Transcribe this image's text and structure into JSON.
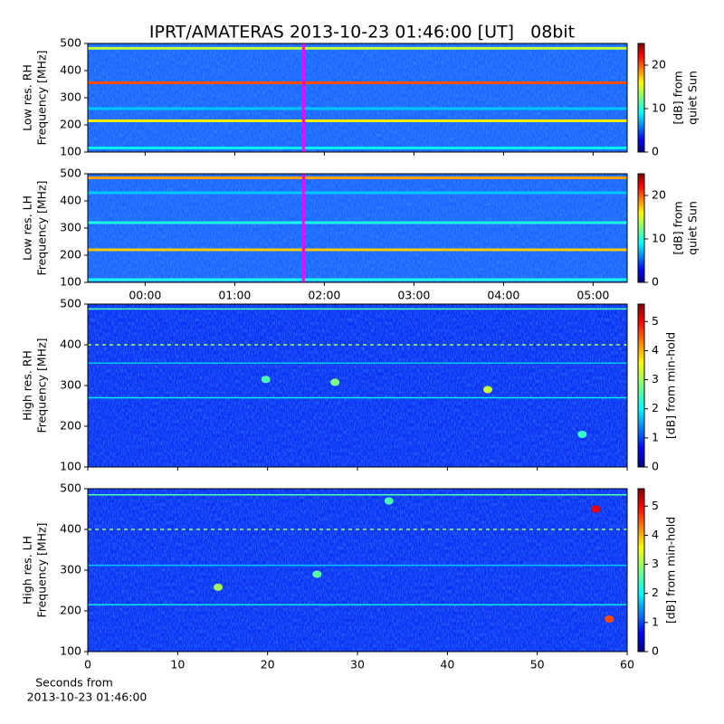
{
  "title": "IPRT/AMATERAS 2013-10-23 01:46:00 [UT]   08bit",
  "xlabel": [
    "Seconds from",
    "2013-10-23 01:46:00"
  ],
  "panels": [
    {
      "type": "spectrogram",
      "ylabel": [
        "Low res. RH",
        "Frequency [MHz]"
      ],
      "ylim": [
        100,
        500
      ],
      "yticks": [
        100,
        200,
        300,
        400,
        500
      ],
      "xlim": [
        -0.64,
        5.38
      ],
      "xticks": [
        0,
        1,
        2,
        3,
        4,
        5
      ],
      "xtick_labels": false,
      "cursor": 1.767,
      "colorbar": {
        "label": [
          "[dB] from",
          "quiet Sun"
        ],
        "lim": [
          0,
          25
        ],
        "ticks": [
          0,
          10,
          20
        ]
      },
      "bands": [
        {
          "freq": 482,
          "db": 14
        },
        {
          "freq": 355,
          "db": 20
        },
        {
          "freq": 215,
          "db": 16
        },
        {
          "freq": 115,
          "db": 9
        },
        {
          "freq": 260,
          "db": 8
        }
      ],
      "spots": []
    },
    {
      "type": "spectrogram",
      "ylabel": [
        "Low res. LH",
        "Frequency [MHz]"
      ],
      "ylim": [
        100,
        500
      ],
      "yticks": [
        100,
        200,
        300,
        400,
        500
      ],
      "xlim": [
        -0.64,
        5.38
      ],
      "xticks": [
        {
          "value": 0,
          "label": "00:00"
        },
        {
          "value": 1,
          "label": "01:00"
        },
        {
          "value": 2,
          "label": "02:00"
        },
        {
          "value": 3,
          "label": "03:00"
        },
        {
          "value": 4,
          "label": "04:00"
        },
        {
          "value": 5,
          "label": "05:00"
        }
      ],
      "xtick_labels": true,
      "cursor": 1.767,
      "colorbar": {
        "label": [
          "[dB] from",
          "quiet Sun"
        ],
        "lim": [
          0,
          25
        ],
        "ticks": [
          0,
          10,
          20
        ]
      },
      "bands": [
        {
          "freq": 485,
          "db": 18
        },
        {
          "freq": 320,
          "db": 10
        },
        {
          "freq": 220,
          "db": 17
        },
        {
          "freq": 110,
          "db": 10
        },
        {
          "freq": 430,
          "db": 8
        }
      ],
      "spots": []
    },
    {
      "type": "spectrogram",
      "ylabel": [
        "High res. RH",
        "Frequency [MHz]"
      ],
      "ylim": [
        100,
        500
      ],
      "yticks": [
        100,
        200,
        300,
        400,
        500
      ],
      "xlim": [
        0,
        60
      ],
      "xticks": [
        0,
        10,
        20,
        30,
        40,
        50,
        60
      ],
      "xtick_labels": false,
      "colorbar": {
        "label": [
          "[dB] from min-hold"
        ],
        "lim": [
          0,
          5.6
        ],
        "ticks": [
          0,
          1,
          2,
          3,
          4,
          5
        ]
      },
      "bands": [
        {
          "freq": 488,
          "db": 2.5
        },
        {
          "freq": 400,
          "db": 3
        },
        {
          "freq": 270,
          "db": 2
        },
        {
          "freq": 355,
          "db": 1.8
        }
      ],
      "spots": [
        {
          "x": 44.5,
          "freq": 290,
          "db": 3.2
        },
        {
          "x": 27.5,
          "freq": 308,
          "db": 2.8
        },
        {
          "x": 19.8,
          "freq": 315,
          "db": 2.5
        },
        {
          "x": 55,
          "freq": 180,
          "db": 2.4
        }
      ]
    },
    {
      "type": "spectrogram",
      "ylabel": [
        "High res. LH",
        "Frequency [MHz]"
      ],
      "ylim": [
        100,
        500
      ],
      "yticks": [
        100,
        200,
        300,
        400,
        500
      ],
      "xlim": [
        0,
        60
      ],
      "xticks": [
        0,
        10,
        20,
        30,
        40,
        50,
        60
      ],
      "xtick_labels": true,
      "colorbar": {
        "label": [
          "[dB] from min-hold"
        ],
        "lim": [
          0,
          5.6
        ],
        "ticks": [
          0,
          1,
          2,
          3,
          4,
          5
        ]
      },
      "bands": [
        {
          "freq": 485,
          "db": 2.5
        },
        {
          "freq": 400,
          "db": 3
        },
        {
          "freq": 312,
          "db": 1.8
        },
        {
          "freq": 215,
          "db": 2
        }
      ],
      "spots": [
        {
          "x": 56.5,
          "freq": 450,
          "db": 5
        },
        {
          "x": 58,
          "freq": 180,
          "db": 4.5
        },
        {
          "x": 14.5,
          "freq": 258,
          "db": 3
        },
        {
          "x": 25.5,
          "freq": 290,
          "db": 2.6
        },
        {
          "x": 33.5,
          "freq": 470,
          "db": 2.5
        }
      ]
    }
  ]
}
